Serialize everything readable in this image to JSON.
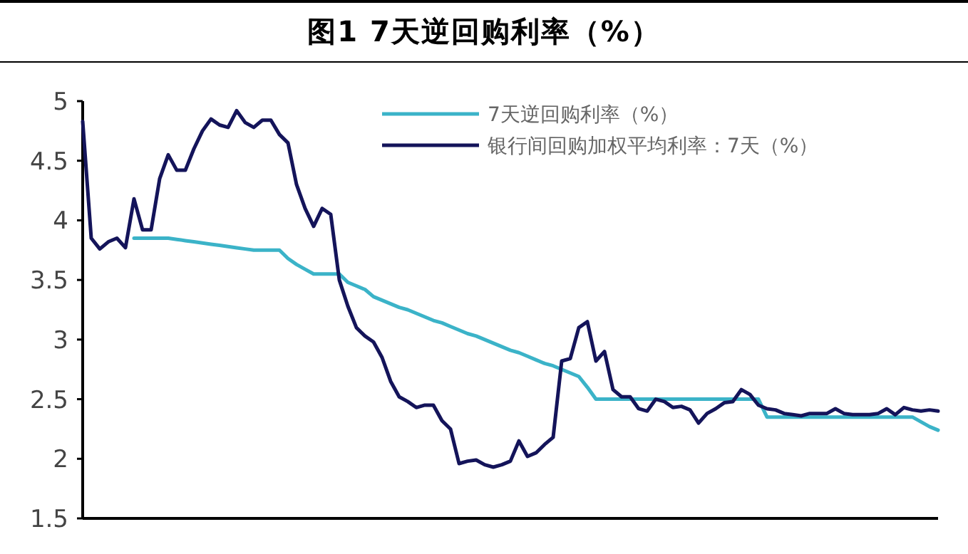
{
  "chart_data": {
    "type": "line",
    "title": "图1  7天逆回购利率（%）",
    "categories": [
      null,
      null,
      null,
      null,
      null,
      null,
      null,
      null,
      null,
      null,
      null,
      null,
      null,
      null,
      null,
      null,
      null,
      null,
      null,
      null,
      null,
      null,
      null,
      null,
      null,
      null,
      null,
      null,
      null,
      null,
      null,
      null,
      null,
      null,
      null,
      null,
      null,
      null,
      null,
      null,
      null,
      null,
      null,
      null,
      null,
      null,
      null,
      null,
      null,
      null,
      null,
      null,
      null,
      null,
      null,
      null,
      null,
      null,
      null,
      null,
      null,
      null,
      null,
      null,
      null,
      null,
      null,
      null,
      null,
      null,
      null,
      null,
      null,
      null,
      null,
      null,
      null,
      null,
      null,
      null,
      null,
      null,
      null,
      null,
      null,
      null,
      null,
      null,
      null,
      null,
      null,
      null,
      null,
      null,
      null,
      null,
      null,
      null,
      null,
      null,
      null
    ],
    "ylim": [
      1.5,
      5
    ],
    "yticks": [
      1.5,
      2,
      2.5,
      3,
      3.5,
      4,
      4.5,
      5
    ],
    "legend": "top right",
    "marker": "none",
    "line_style": "solid",
    "grid": false,
    "series": [
      {
        "name": "7天逆回购利率（%）",
        "color": "#3bb3c8",
        "values": [
          null,
          null,
          null,
          null,
          null,
          null,
          3.85,
          3.85,
          3.85,
          3.85,
          3.85,
          3.84,
          3.83,
          3.82,
          3.81,
          3.8,
          3.79,
          3.78,
          3.77,
          3.76,
          3.75,
          3.75,
          3.75,
          3.75,
          3.68,
          3.63,
          3.59,
          3.55,
          3.55,
          3.55,
          3.55,
          3.48,
          3.45,
          3.42,
          3.36,
          3.33,
          3.3,
          3.27,
          3.25,
          3.22,
          3.19,
          3.16,
          3.14,
          3.11,
          3.08,
          3.05,
          3.03,
          3.0,
          2.97,
          2.94,
          2.91,
          2.89,
          2.86,
          2.83,
          2.8,
          2.78,
          2.75,
          2.72,
          2.69,
          2.6,
          2.5,
          2.5,
          2.5,
          2.5,
          2.5,
          2.5,
          2.5,
          2.5,
          2.5,
          2.5,
          2.5,
          2.5,
          2.5,
          2.5,
          2.5,
          2.5,
          2.5,
          2.5,
          2.5,
          2.5,
          2.35,
          2.35,
          2.35,
          2.35,
          2.35,
          2.35,
          2.35,
          2.35,
          2.35,
          2.35,
          2.35,
          2.35,
          2.35,
          2.35,
          2.35,
          2.35,
          2.35,
          2.35,
          2.31,
          2.27,
          2.24
        ]
      },
      {
        "name": "银行间回购加权平均利率：7天（%）",
        "color": "#14145a",
        "values": [
          4.83,
          3.85,
          3.76,
          3.82,
          3.85,
          3.77,
          4.18,
          3.92,
          3.92,
          4.35,
          4.55,
          4.42,
          4.42,
          4.6,
          4.75,
          4.85,
          4.8,
          4.78,
          4.92,
          4.82,
          4.78,
          4.84,
          4.84,
          4.72,
          4.65,
          4.3,
          4.1,
          3.95,
          4.1,
          4.05,
          3.5,
          3.28,
          3.1,
          3.03,
          2.98,
          2.85,
          2.65,
          2.52,
          2.48,
          2.43,
          2.45,
          2.45,
          2.32,
          2.25,
          1.96,
          1.98,
          1.99,
          1.95,
          1.93,
          1.95,
          1.98,
          2.15,
          2.02,
          2.05,
          2.12,
          2.18,
          2.82,
          2.84,
          3.1,
          3.15,
          2.82,
          2.9,
          2.58,
          2.52,
          2.52,
          2.42,
          2.4,
          2.5,
          2.48,
          2.43,
          2.44,
          2.41,
          2.3,
          2.38,
          2.42,
          2.47,
          2.48,
          2.58,
          2.54,
          2.45,
          2.42,
          2.41,
          2.38,
          2.37,
          2.36,
          2.38,
          2.38,
          2.38,
          2.42,
          2.38,
          2.37,
          2.37,
          2.37,
          2.38,
          2.42,
          2.37,
          2.43,
          2.41,
          2.4,
          2.41,
          2.4
        ]
      }
    ]
  }
}
